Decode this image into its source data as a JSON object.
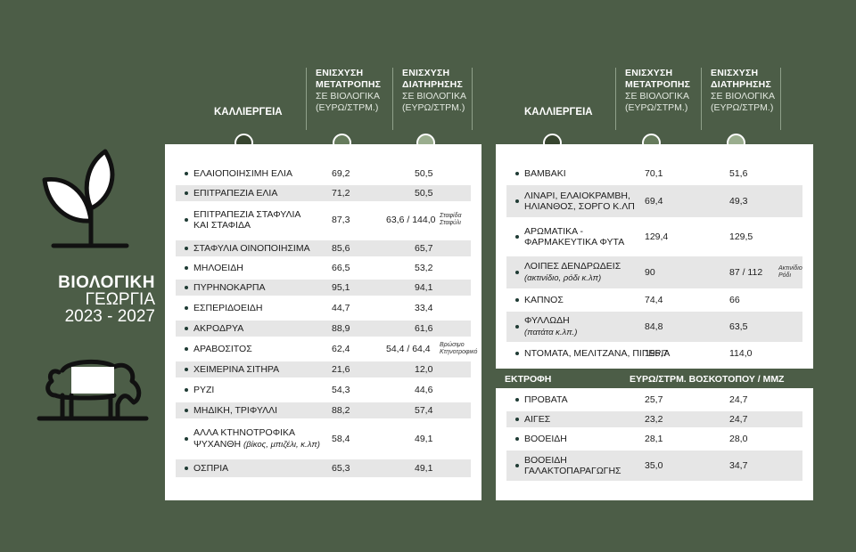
{
  "brand": {
    "title": "ΒΙΟΛΟΓΙΚΗ",
    "subtitle": "ΓΕΩΡΓΙΑ",
    "years": "2023 - 2027"
  },
  "headers": {
    "crop": "ΚΑΛΛΙΕΡΓΕΙΑ",
    "conversion_title": "ΕΝΙΣΧΥΣΗ ΜΕΤΑΤΡΟΠΗΣ",
    "maintenance_title": "ΕΝΙΣΧΥΣΗ ΔΙΑΤΗΡΗΣΗΣ",
    "sub1": "ΣΕ ΒΙΟΛΟΓΙΚΑ",
    "sub2": "(ΕΥΡΩ/ΣΤΡΜ.)"
  },
  "left_table": [
    {
      "name": "ΕΛΑΙΟΠΟΙΗΣΙΜΗ ΕΛΙΑ",
      "conv": "69,2",
      "maint": "50,5"
    },
    {
      "name": "ΕΠΙΤΡΑΠΕΖΙΑ ΕΛΙΑ",
      "conv": "71,2",
      "maint": "50,5"
    },
    {
      "name": "ΕΠΙΤΡΑΠΕΖΙΑ ΣΤΑΦΥΛΙΑ",
      "name2": "ΚΑΙ ΣΤΑΦΙΔΑ",
      "conv": "87,3",
      "maint": "63,6 / 144,0",
      "note1": "Σταφίδα",
      "note2": "Σταφύλι"
    },
    {
      "name": "ΣΤΑΦΥΛΙΑ ΟΙΝΟΠΟΙΗΣΙΜΑ",
      "conv": "85,6",
      "maint": "65,7"
    },
    {
      "name": "ΜΗΛΟΕΙΔΗ",
      "conv": "66,5",
      "maint": "53,2"
    },
    {
      "name": "ΠΥΡΗΝΟΚΑΡΠΑ",
      "conv": "95,1",
      "maint": "94,1"
    },
    {
      "name": "ΕΣΠΕΡΙΔΟΕΙΔΗ",
      "conv": "44,7",
      "maint": "33,4"
    },
    {
      "name": "ΑΚΡΟΔΡΥΑ",
      "conv": "88,9",
      "maint": "61,6"
    },
    {
      "name": "ΑΡΑΒΟΣΙΤΟΣ",
      "conv": "62,4",
      "maint": "54,4 / 64,4",
      "note1": "Βρώσιμο",
      "note2": "Κτηνοτροφικό"
    },
    {
      "name": "ΧΕΙΜΕΡΙΝΑ ΣΙΤΗΡΑ",
      "conv": "21,6",
      "maint": "12,0"
    },
    {
      "name": "ΡΥΖΙ",
      "conv": "54,3",
      "maint": "44,6"
    },
    {
      "name": "ΜΗΔΙΚΗ, ΤΡΙΦΥΛΛΙ",
      "conv": "88,2",
      "maint": "57,4"
    },
    {
      "name": "ΑΛΛΑ ΚΤΗΝΟΤΡΟΦΙΚΑ",
      "name2": "ΨΥΧΑΝΘΗ",
      "name2_italic": "(βίκος, μπιζέλι, κ.λπ)",
      "conv": "58,4",
      "maint": "49,1"
    },
    {
      "name": "ΟΣΠΡΙΑ",
      "conv": "65,3",
      "maint": "49,1"
    }
  ],
  "right_table": [
    {
      "name": "ΒΑΜΒΑΚΙ",
      "conv": "70,1",
      "maint": "51,6"
    },
    {
      "name": "ΛΙΝΑΡΙ, ΕΛΑΙΟΚΡΑΜΒΗ,",
      "name2": "ΗΛΙΑΝΘΟΣ, ΣΟΡΓΟ Κ.ΛΠ",
      "conv": "69,4",
      "maint": "49,3"
    },
    {
      "name": "ΑΡΩΜΑΤΙΚΑ -",
      "name2": "ΦΑΡΜΑΚΕΥΤΙΚΑ ΦΥΤΑ",
      "conv": "129,4",
      "maint": "129,5"
    },
    {
      "name": "ΛΟΙΠΕΣ ΔΕΝΔΡΩΔΕΙΣ",
      "name2_italic": "(ακτινίδιο, ρόδι κ.λπ)",
      "conv": "90",
      "maint": "87 / 112",
      "note1": "Ακτινίδιο",
      "note2": "Ρόδι"
    },
    {
      "name": "ΚΑΠΝΟΣ",
      "conv": "74,4",
      "maint": "66"
    },
    {
      "name": "ΦΥΛΛΩΔΗ",
      "name2_italic": "(πατάτα κ.λπ.)",
      "conv": "84,8",
      "maint": "63,5"
    },
    {
      "name": "ΝΤΟΜΑΤΑ, ΜΕΛΙΤΖΑΝΑ, ΠΙΠΕΡΙΑ",
      "conv": "195,7",
      "maint": "114,0"
    }
  ],
  "livestock": {
    "header_left": "ΕΚΤΡΟΦΗ",
    "header_right": "ΕΥΡΩ/ΣΤΡΜ. ΒΟΣΚΟΤΟΠΟΥ / ΜΜΖ",
    "rows": [
      {
        "name": "ΠΡΟΒΑΤΑ",
        "conv": "25,7",
        "maint": "24,7"
      },
      {
        "name": "ΑΙΓΕΣ",
        "conv": "23,2",
        "maint": "24,7"
      },
      {
        "name": "ΒΟΟΕΙΔΗ",
        "conv": "28,1",
        "maint": "28,0"
      },
      {
        "name": "ΒΟΟΕΙΔΗ",
        "name2": "ΓΑΛΑΚΤΟΠΑΡΑΓΩΓΗΣ",
        "conv": "35,0",
        "maint": "34,7"
      }
    ]
  },
  "icons": [
    "plant-icon",
    "sheep-icon"
  ]
}
